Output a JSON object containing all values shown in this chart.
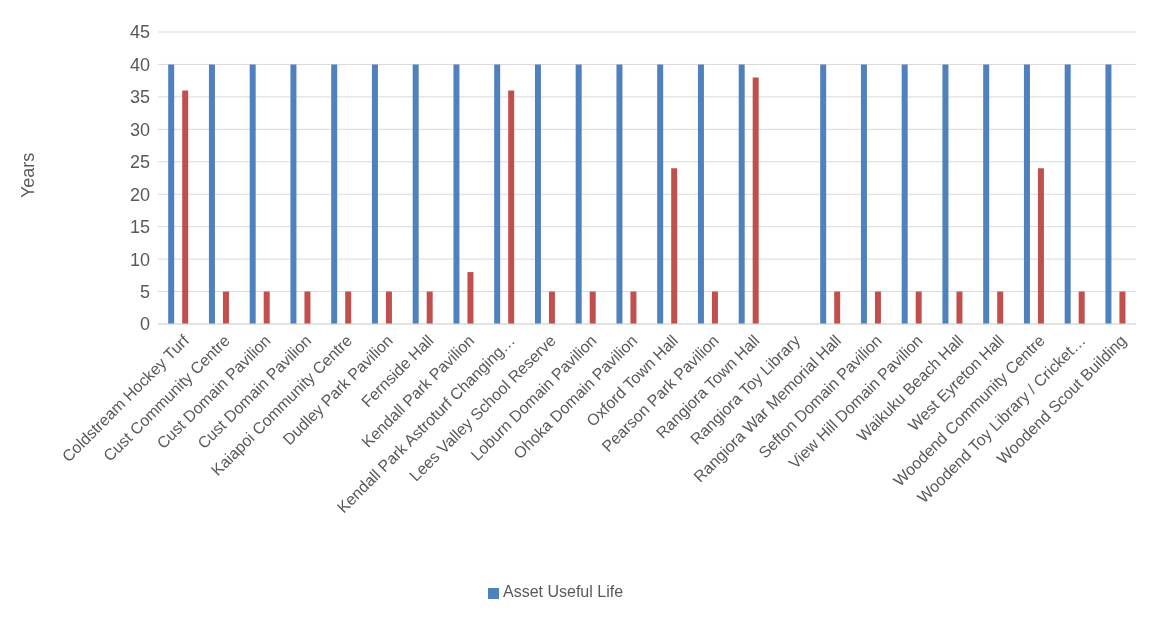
{
  "chart_data": {
    "type": "bar",
    "ylabel": "Years",
    "categories": [
      "Coldstream Hockey Turf",
      "Cust Community Centre",
      "Cust Domain Pavilion",
      "Cust Domain Pavilion",
      "Kaiapoi Community Centre",
      "Dudley Park Pavilion",
      "Fernside Hall",
      "Kendall Park Pavilion",
      "Kendall Park Astroturf Changing…",
      "Lees Valley School Reserve",
      "Loburn Domain Pavilion",
      "Ohoka Domain Pavilion",
      "Oxford Town Hall",
      "Pearson Park Pavilion",
      "Rangiora Town Hall",
      "Rangiora Toy Library",
      "Rangiora War Memorial Hall",
      "Sefton Domain Pavilion",
      "View Hill Domain Pavilion",
      "Waikuku Beach Hall",
      "West Eyreton Hall",
      "Woodend Community Centre",
      "Woodend Toy Library / Cricket…",
      "Woodend Scout Building"
    ],
    "series": [
      {
        "name": "Asset Useful Life",
        "color": "#4f81bd",
        "values": [
          40,
          40,
          40,
          40,
          40,
          40,
          40,
          40,
          40,
          40,
          40,
          40,
          40,
          40,
          40,
          null,
          40,
          40,
          40,
          40,
          40,
          40,
          40,
          40
        ]
      },
      {
        "color": "#c0504d",
        "values": [
          36,
          5,
          5,
          5,
          5,
          5,
          5,
          8,
          36,
          5,
          5,
          5,
          24,
          5,
          38,
          null,
          5,
          5,
          5,
          5,
          5,
          24,
          5,
          5
        ]
      }
    ],
    "ylim": [
      0,
      45
    ],
    "yticks": [
      0,
      5,
      10,
      15,
      20,
      25,
      30,
      35,
      40,
      45
    ],
    "grid": "y",
    "legend": "bottom"
  }
}
